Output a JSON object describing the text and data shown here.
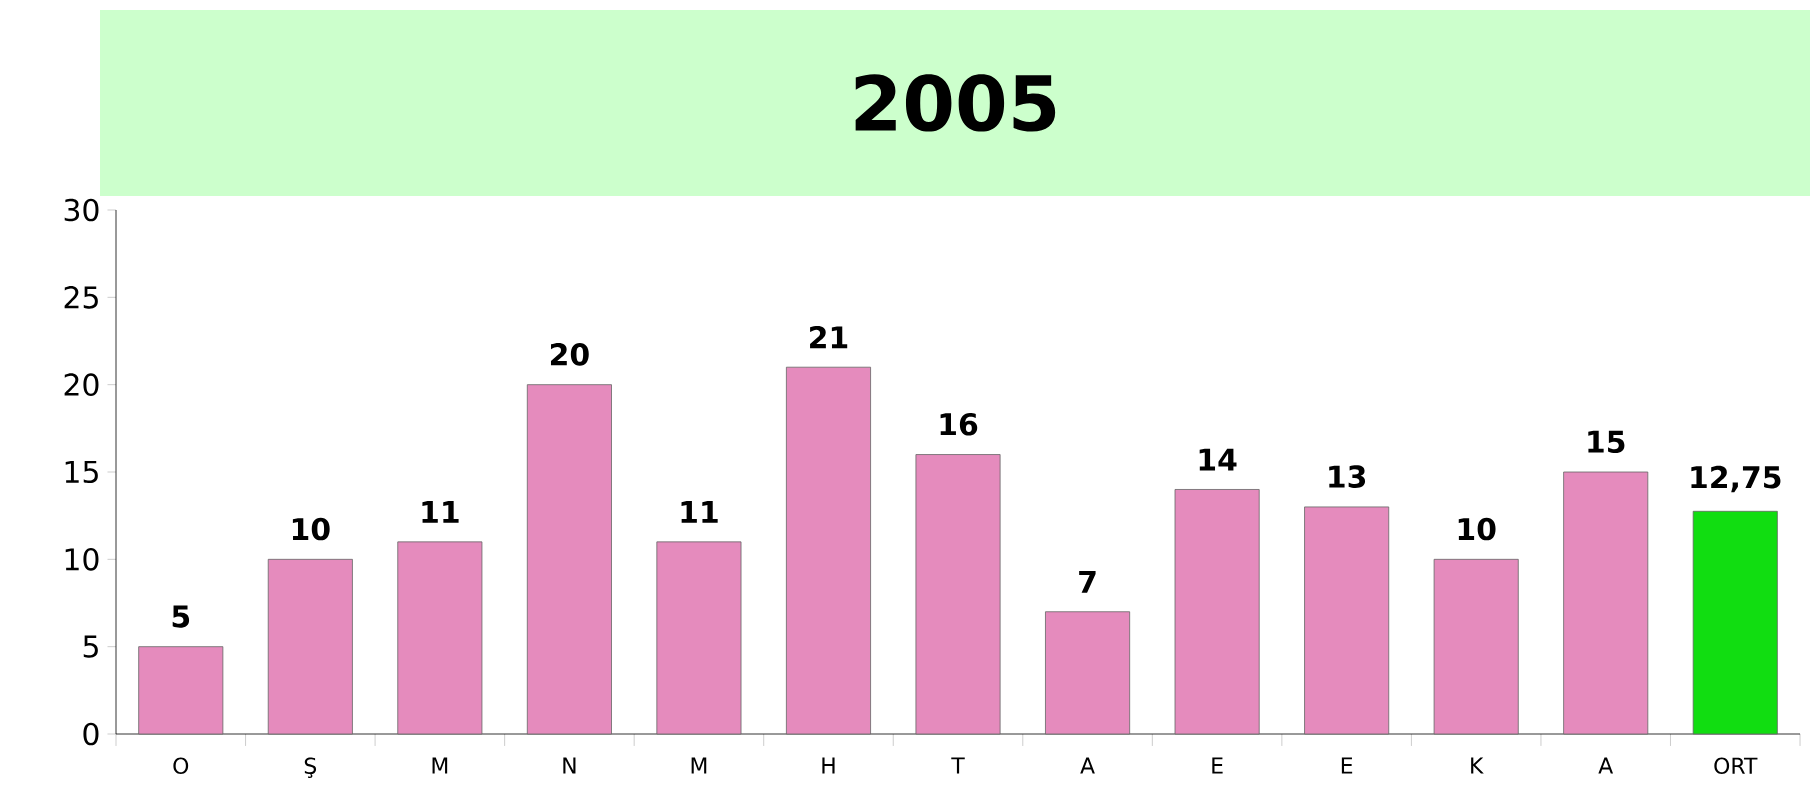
{
  "chart_data": {
    "type": "bar",
    "title": "2005",
    "categories": [
      "O",
      "Ş",
      "M",
      "N",
      "M",
      "H",
      "T",
      "A",
      "E",
      "E",
      "K",
      "A",
      "ORT"
    ],
    "values": [
      5,
      10,
      11,
      20,
      11,
      21,
      16,
      7,
      14,
      13,
      10,
      15,
      12.75
    ],
    "colors": [
      "#e58bbd",
      "#e58bbd",
      "#e58bbd",
      "#e58bbd",
      "#e58bbd",
      "#e58bbd",
      "#e58bbd",
      "#e58bbd",
      "#e58bbd",
      "#e58bbd",
      "#e58bbd",
      "#e58bbd",
      "#11dd11"
    ],
    "value_labels": [
      "5",
      "10",
      "11",
      "20",
      "11",
      "21",
      "16",
      "7",
      "14",
      "13",
      "10",
      "15",
      "12,75"
    ],
    "ylim": [
      0,
      30
    ],
    "yticks": [
      0,
      5,
      10,
      15,
      20,
      25,
      30
    ]
  }
}
